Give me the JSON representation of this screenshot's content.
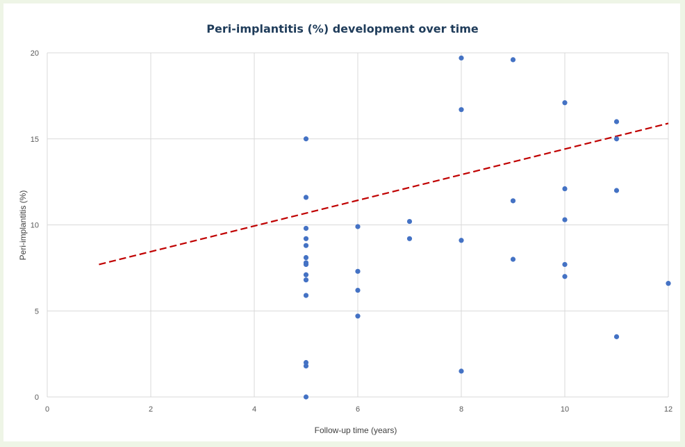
{
  "chart_data": {
    "type": "scatter",
    "title": "Peri-implantitis (%) development over time",
    "xlabel": "Follow-up time (years)",
    "ylabel": "Peri-implantitis (%)",
    "xlim": [
      0,
      12
    ],
    "ylim": [
      0,
      20
    ],
    "xticks": [
      0,
      2,
      4,
      6,
      8,
      10,
      12
    ],
    "yticks": [
      0,
      5,
      10,
      15,
      20
    ],
    "grid": true,
    "colors": {
      "points": "#4472c4",
      "trendline": "#c00000",
      "grid": "#d9d9d9"
    },
    "series": [
      {
        "points": [
          [
            5,
            15.0
          ],
          [
            5,
            11.6
          ],
          [
            5,
            9.8
          ],
          [
            5,
            9.2
          ],
          [
            5,
            8.8
          ],
          [
            5,
            8.1
          ],
          [
            5,
            7.8
          ],
          [
            5,
            7.7
          ],
          [
            5,
            7.1
          ],
          [
            5,
            6.8
          ],
          [
            5,
            5.9
          ],
          [
            5,
            2.0
          ],
          [
            5,
            1.8
          ],
          [
            5,
            0.0
          ],
          [
            6,
            9.9
          ],
          [
            6,
            7.3
          ],
          [
            6,
            6.2
          ],
          [
            6,
            4.7
          ],
          [
            7,
            10.2
          ],
          [
            7,
            9.2
          ],
          [
            8,
            19.7
          ],
          [
            8,
            16.7
          ],
          [
            8,
            9.1
          ],
          [
            8,
            1.5
          ],
          [
            9,
            19.6
          ],
          [
            9,
            11.4
          ],
          [
            9,
            8.0
          ],
          [
            10,
            17.1
          ],
          [
            10,
            12.1
          ],
          [
            10,
            10.3
          ],
          [
            10,
            7.7
          ],
          [
            10,
            7.0
          ],
          [
            11,
            16.0
          ],
          [
            11,
            15.0
          ],
          [
            11,
            12.0
          ],
          [
            11,
            3.5
          ],
          [
            12,
            6.6
          ]
        ]
      }
    ],
    "trendline": {
      "style": "dashed",
      "x": [
        1,
        12
      ],
      "y": [
        7.7,
        15.9
      ]
    }
  }
}
